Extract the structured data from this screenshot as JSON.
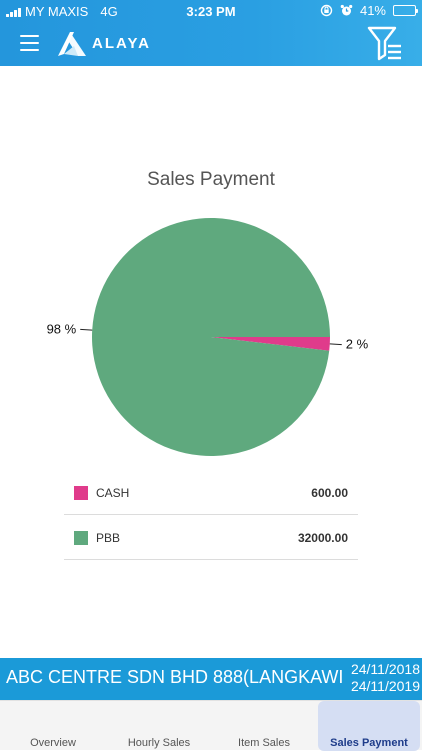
{
  "status_bar": {
    "carrier": "MY MAXIS",
    "network": "4G",
    "time": "3:23 PM",
    "battery_percent_label": "41%",
    "battery_level": 0.41,
    "icons": [
      "signal-bars-icon",
      "rotation-lock-icon",
      "alarm-icon",
      "battery-icon"
    ]
  },
  "header": {
    "logo_text": "ALAYA",
    "menu_icon": "hamburger-menu-icon",
    "filter_icon": "filter-icon"
  },
  "colors": {
    "header_blue": "#2a9fe2",
    "cash": "#e03b8b",
    "pbb": "#5fa97e",
    "outlet_bar": "#1b9ad8",
    "active_tab": "#d5def3"
  },
  "chart_data": {
    "type": "pie",
    "title": "Sales Payment",
    "slices": [
      {
        "label": "CASH",
        "value": 600.0,
        "percent_label": "2 %",
        "color": "#e03b8b"
      },
      {
        "label": "PBB",
        "value": 32000.0,
        "percent_label": "98 %",
        "color": "#5fa97e"
      }
    ],
    "legend": "below"
  },
  "legend": {
    "rows": [
      {
        "name": "CASH",
        "amount": "600.00"
      },
      {
        "name": "PBB",
        "amount": "32000.00"
      }
    ]
  },
  "outlet": {
    "name": "ABC CENTRE SDN BHD 888(LANGKAWI",
    "date_from": "24/11/2018",
    "date_to": "24/11/2019"
  },
  "tabs": [
    {
      "label": "Overview",
      "active": false
    },
    {
      "label": "Hourly Sales",
      "active": false
    },
    {
      "label": "Item Sales",
      "active": false
    },
    {
      "label": "Sales Payment",
      "active": true
    }
  ]
}
